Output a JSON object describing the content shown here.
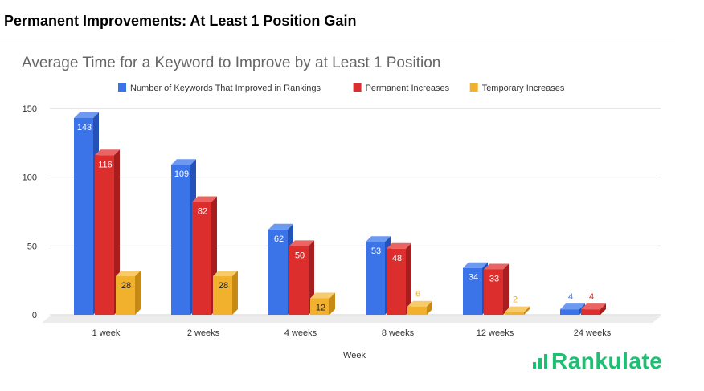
{
  "header": {
    "title": "Permanent Improvements: At Least 1 Position Gain"
  },
  "logo": {
    "text": "Rankulate"
  },
  "colors": {
    "series1": "#3b74e8",
    "series2": "#dd2e2e",
    "series3": "#f2b12c",
    "logo": "#1dbf73"
  },
  "chart_data": {
    "type": "bar",
    "title": "Average Time for a Keyword to Improve by at Least 1 Position",
    "xlabel": "Week",
    "ylabel": "",
    "ylim": [
      0,
      150
    ],
    "yticks": [
      0,
      50,
      100,
      150
    ],
    "categories": [
      "1 week",
      "2 weeks",
      "4 weeks",
      "8 weeks",
      "12 weeks",
      "24 weeks"
    ],
    "series": [
      {
        "name": "Number of Keywords That Improved in Rankings",
        "values": [
          143,
          109,
          62,
          53,
          34,
          4
        ],
        "labels": [
          "143",
          "109",
          "62",
          "53",
          "34",
          "4"
        ]
      },
      {
        "name": "Permanent Increases",
        "values": [
          116,
          82,
          50,
          48,
          33,
          4
        ],
        "labels": [
          "116",
          "82",
          "50",
          "48",
          "33",
          "4"
        ]
      },
      {
        "name": "Temporary Increases",
        "values": [
          28,
          28,
          12,
          6,
          2,
          0
        ],
        "labels": [
          "28",
          "28",
          "12",
          "6",
          "2",
          ""
        ]
      }
    ],
    "legend": "top",
    "grid": true
  }
}
